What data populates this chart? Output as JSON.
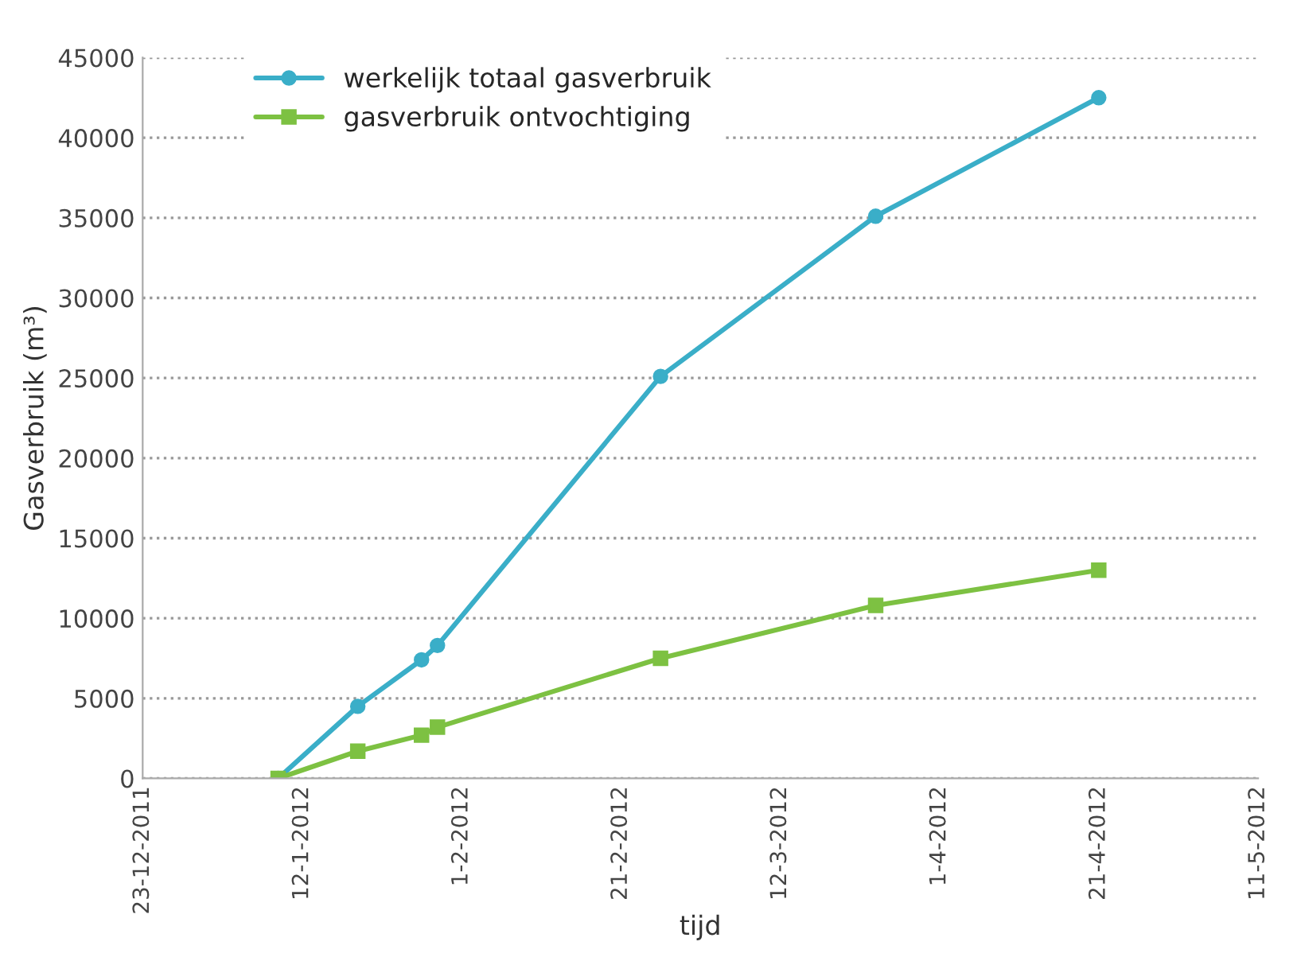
{
  "chart_data": {
    "type": "line",
    "xlabel": "tijd",
    "ylabel": "Gasverbruik (m³)",
    "xlim": [
      "2011-12-23",
      "2012-05-11"
    ],
    "xticks": [
      {
        "value": "2011-12-23",
        "label": "23-12-2011"
      },
      {
        "value": "2012-01-12",
        "label": "12-1-2012"
      },
      {
        "value": "2012-02-01",
        "label": "1-2-2012"
      },
      {
        "value": "2012-02-21",
        "label": "21-2-2012"
      },
      {
        "value": "2012-03-12",
        "label": "12-3-2012"
      },
      {
        "value": "2012-04-01",
        "label": "1-4-2012"
      },
      {
        "value": "2012-04-21",
        "label": "21-4-2012"
      },
      {
        "value": "2012-05-11",
        "label": "11-5-2012"
      }
    ],
    "ylim": [
      0,
      45000
    ],
    "yticks": [
      0,
      5000,
      10000,
      15000,
      20000,
      25000,
      30000,
      35000,
      40000,
      45000
    ],
    "grid": "y",
    "legend": "top left",
    "x": [
      "2012-01-09",
      "2012-01-19",
      "2012-01-27",
      "2012-01-29",
      "2012-02-26",
      "2012-03-24",
      "2012-04-21"
    ],
    "series": [
      {
        "name": "werkelijk totaal gasverbruik",
        "color": "#3aaec8",
        "marker": "circle",
        "values": [
          0,
          4500,
          7400,
          8300,
          25100,
          35100,
          42500
        ]
      },
      {
        "name": "gasverbruik ontvochtiging",
        "color": "#7dc142",
        "marker": "square",
        "values": [
          0,
          1700,
          2700,
          3200,
          7500,
          10800,
          13000
        ]
      }
    ]
  }
}
